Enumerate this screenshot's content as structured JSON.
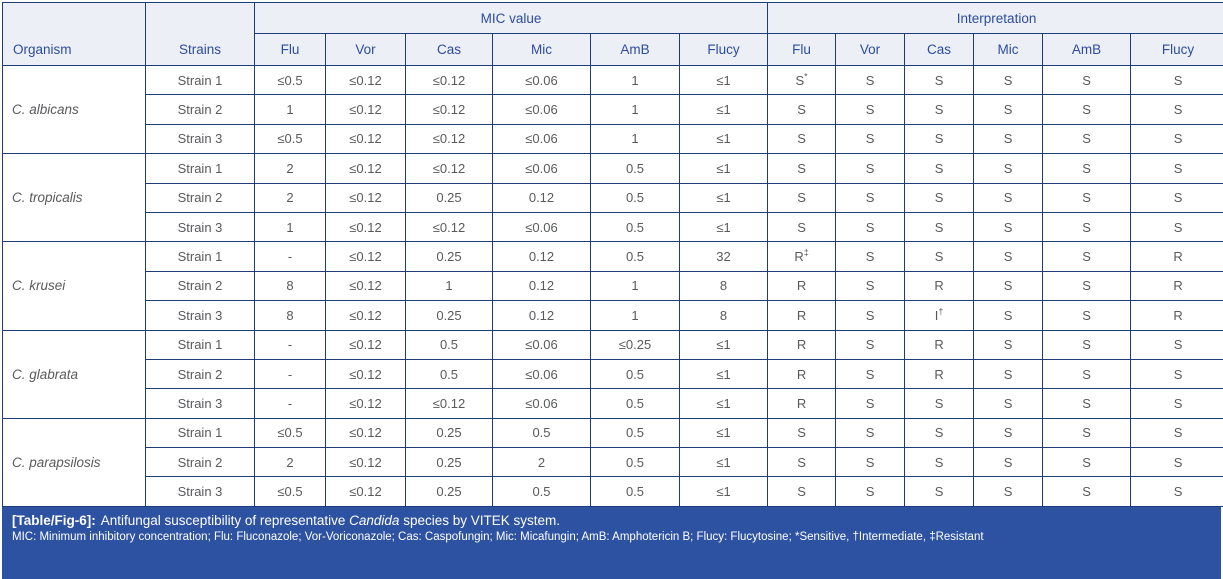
{
  "table": {
    "header": {
      "organism": "Organism",
      "strains": "Strains",
      "mic_group": "MIC value",
      "interpretation_group": "Interpretation",
      "drug_columns": [
        "Flu",
        "Vor",
        "Cas",
        "Mic",
        "AmB",
        "Flucy"
      ]
    },
    "groups": [
      {
        "organism": "C. albicans",
        "rows": [
          {
            "strain": "Strain 1",
            "mic": [
              "≤0.5",
              "≤0.12",
              "≤0.12",
              "≤0.06",
              "1",
              "≤1"
            ],
            "interp": [
              "S*",
              "S",
              "S",
              "S",
              "S",
              "S"
            ]
          },
          {
            "strain": "Strain 2",
            "mic": [
              "1",
              "≤0.12",
              "≤0.12",
              "≤0.06",
              "1",
              "≤1"
            ],
            "interp": [
              "S",
              "S",
              "S",
              "S",
              "S",
              "S"
            ]
          },
          {
            "strain": "Strain 3",
            "mic": [
              "≤0.5",
              "≤0.12",
              "≤0.12",
              "≤0.06",
              "1",
              "≤1"
            ],
            "interp": [
              "S",
              "S",
              "S",
              "S",
              "S",
              "S"
            ]
          }
        ]
      },
      {
        "organism": "C. tropicalis",
        "rows": [
          {
            "strain": "Strain 1",
            "mic": [
              "2",
              "≤0.12",
              "≤0.12",
              "≤0.06",
              "0.5",
              "≤1"
            ],
            "interp": [
              "S",
              "S",
              "S",
              "S",
              "S",
              "S"
            ]
          },
          {
            "strain": "Strain 2",
            "mic": [
              "2",
              "≤0.12",
              "0.25",
              "0.12",
              "0.5",
              "≤1"
            ],
            "interp": [
              "S",
              "S",
              "S",
              "S",
              "S",
              "S"
            ]
          },
          {
            "strain": "Strain 3",
            "mic": [
              "1",
              "≤0.12",
              "≤0.12",
              "≤0.06",
              "0.5",
              "≤1"
            ],
            "interp": [
              "S",
              "S",
              "S",
              "S",
              "S",
              "S"
            ]
          }
        ]
      },
      {
        "organism": "C. krusei",
        "rows": [
          {
            "strain": "Strain 1",
            "mic": [
              "-",
              "≤0.12",
              "0.25",
              "0.12",
              "0.5",
              "32"
            ],
            "interp": [
              "R‡",
              "S",
              "S",
              "S",
              "S",
              "R"
            ]
          },
          {
            "strain": "Strain 2",
            "mic": [
              "8",
              "≤0.12",
              "1",
              "0.12",
              "1",
              "8"
            ],
            "interp": [
              "R",
              "S",
              "R",
              "S",
              "S",
              "R"
            ]
          },
          {
            "strain": "Strain 3",
            "mic": [
              "8",
              "≤0.12",
              "0.25",
              "0.12",
              "1",
              "8"
            ],
            "interp": [
              "R",
              "S",
              "I†",
              "S",
              "S",
              "R"
            ]
          }
        ]
      },
      {
        "organism": "C. glabrata",
        "rows": [
          {
            "strain": "Strain 1",
            "mic": [
              "-",
              "≤0.12",
              "0.5",
              "≤0.06",
              "≤0.25",
              "≤1"
            ],
            "interp": [
              "R",
              "S",
              "R",
              "S",
              "S",
              "S"
            ]
          },
          {
            "strain": "Strain 2",
            "mic": [
              "-",
              "≤0.12",
              "0.5",
              "≤0.06",
              "0.5",
              "≤1"
            ],
            "interp": [
              "R",
              "S",
              "R",
              "S",
              "S",
              "S"
            ]
          },
          {
            "strain": "Strain 3",
            "mic": [
              "-",
              "≤0.12",
              "≤0.12",
              "≤0.06",
              "0.5",
              "≤1"
            ],
            "interp": [
              "R",
              "S",
              "S",
              "S",
              "S",
              "S"
            ]
          }
        ]
      },
      {
        "organism": "C. parapsilosis",
        "rows": [
          {
            "strain": "Strain 1",
            "mic": [
              "≤0.5",
              "≤0.12",
              "0.25",
              "0.5",
              "0.5",
              "≤1"
            ],
            "interp": [
              "S",
              "S",
              "S",
              "S",
              "S",
              "S"
            ]
          },
          {
            "strain": "Strain 2",
            "mic": [
              "2",
              "≤0.12",
              "0.25",
              "2",
              "0.5",
              "≤1"
            ],
            "interp": [
              "S",
              "S",
              "S",
              "S",
              "S",
              "S"
            ]
          },
          {
            "strain": "Strain 3",
            "mic": [
              "≤0.5",
              "≤0.12",
              "0.25",
              "0.5",
              "0.5",
              "≤1"
            ],
            "interp": [
              "S",
              "S",
              "S",
              "S",
              "S",
              "S"
            ]
          }
        ]
      }
    ]
  },
  "caption": {
    "label": "[Table/Fig-6]:",
    "text_pre": "Antifungal susceptibility of representative",
    "species": "Candida",
    "text_post": "species by VITEK system.",
    "footnote": "MIC: Minimum inhibitory concentration; Flu: Fluconazole; Vor-Voriconazole; Cas: Caspofungin; Mic: Micafungin; AmB: Amphotericin B; Flucy: Flucytosine; *Sensitive, †Intermediate, ‡Resistant"
  },
  "colors": {
    "border": "#1e3c78",
    "header_bg": "#edeff6",
    "header_text": "#2b4c9f",
    "body_text": "#595a5c",
    "caption_bg": "#2d52a2",
    "caption_text": "#ffffff"
  }
}
